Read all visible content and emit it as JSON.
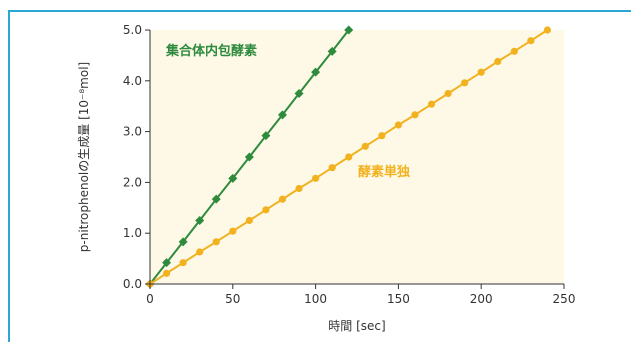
{
  "chart_data": {
    "type": "line",
    "xlabel": "時間 [sec]",
    "ylabel": "p-nitrophenolの生成量 [10⁻⁸mol]",
    "xlim": [
      0,
      250
    ],
    "ylim": [
      0,
      5
    ],
    "x_ticks": [
      "0",
      "50",
      "100",
      "150",
      "200",
      "250"
    ],
    "y_ticks": [
      "0.0",
      "1.0",
      "2.0",
      "3.0",
      "4.0",
      "5.0"
    ],
    "grid": false,
    "background": "#fdf9e6",
    "series": [
      {
        "name": "集合体内包酵素",
        "color": "#2e8b3e",
        "marker": "diamond",
        "x": [
          0,
          10,
          20,
          30,
          40,
          50,
          60,
          70,
          80,
          90,
          100,
          110,
          120
        ],
        "y": [
          0,
          0.42,
          0.83,
          1.25,
          1.67,
          2.08,
          2.5,
          2.92,
          3.33,
          3.75,
          4.17,
          4.58,
          5.0
        ]
      },
      {
        "name": "酵素単独",
        "color": "#f2b21f",
        "marker": "circle",
        "x": [
          0,
          10,
          20,
          30,
          40,
          50,
          60,
          70,
          80,
          90,
          100,
          110,
          120,
          130,
          140,
          150,
          160,
          170,
          180,
          190,
          200,
          210,
          220,
          230,
          240
        ],
        "y": [
          0,
          0.21,
          0.42,
          0.63,
          0.83,
          1.04,
          1.25,
          1.46,
          1.67,
          1.88,
          2.08,
          2.29,
          2.5,
          2.71,
          2.92,
          3.13,
          3.33,
          3.54,
          3.75,
          3.96,
          4.17,
          4.38,
          4.58,
          4.79,
          5.0
        ]
      }
    ]
  }
}
